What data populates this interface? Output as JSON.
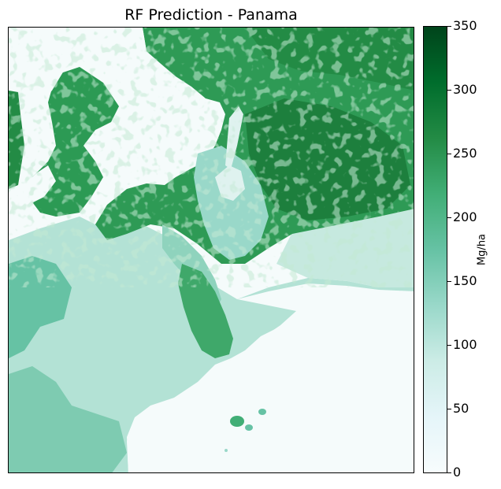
{
  "title": "RF Prediction - Panama",
  "colorbar": {
    "label": "Mg/ha",
    "min": 0,
    "max": 350,
    "ticks": [
      "0",
      "50",
      "100",
      "150",
      "200",
      "250",
      "300",
      "350"
    ],
    "colormap": "BuGn",
    "colors": [
      "#f7fcfd",
      "#e5f5f9",
      "#ccece6",
      "#99d8c9",
      "#66c2a4",
      "#41ae76",
      "#238b45",
      "#006d2c",
      "#00441b"
    ]
  },
  "map": {
    "type": "raster",
    "region": "Panama",
    "variable": "predicted biomass",
    "sea_color": "#f5fbfb"
  }
}
